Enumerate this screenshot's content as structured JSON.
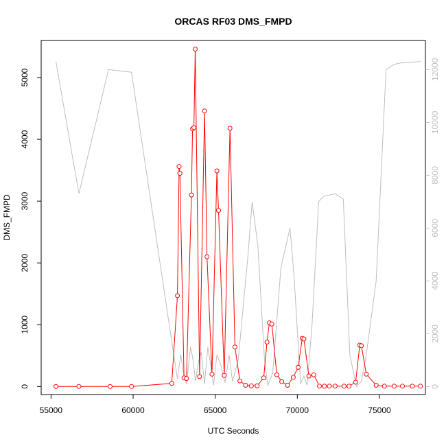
{
  "chart_data": {
    "type": "line",
    "title": "ORCAS RF03 DMS_FMPD",
    "xlabel": "UTC Seconds",
    "ylabel": "DMS_FMPD",
    "y2label": "",
    "xlim": [
      54400,
      77800
    ],
    "ylim": [
      -130,
      5600
    ],
    "y2lim": [
      -300,
      13100
    ],
    "x_ticks": [
      55000,
      60000,
      65000,
      70000,
      75000
    ],
    "y_ticks": [
      0,
      1000,
      2000,
      3000,
      4000,
      5000
    ],
    "y2_ticks": [
      0,
      2000,
      4000,
      6000,
      8000,
      10000,
      12000
    ],
    "x_tick_labels": [
      "55000",
      "60000",
      "65000",
      "70000",
      "75000"
    ],
    "y_tick_labels": [
      "0",
      "1000",
      "2000",
      "3000",
      "4000",
      "5000"
    ],
    "y2_tick_labels": [
      "0",
      "2000",
      "4000",
      "6000",
      "8000",
      "10000",
      "12000"
    ],
    "grid": false,
    "colors": {
      "dms_series": "#ff0000",
      "altitude_series": "#bebebe",
      "axis": "#000000",
      "right_axis": "#bebebe"
    },
    "series": [
      {
        "axis": "left",
        "style": "line+points",
        "x": [
          55300,
          56700,
          58600,
          59900,
          62350,
          62700,
          62800,
          62850,
          63100,
          63250,
          63550,
          63620,
          63700,
          63780,
          64050,
          64350,
          64500,
          64800,
          65100,
          65200,
          65550,
          65900,
          66200,
          66500,
          66850,
          67200,
          67550,
          67950,
          68150,
          68300,
          68450,
          68750,
          69050,
          69400,
          69750,
          70050,
          70300,
          70400,
          70700,
          71000,
          71350,
          71650,
          71950,
          72300,
          72850,
          73150,
          73550,
          73800,
          73900,
          74200,
          74800,
          75300,
          75900,
          76400,
          77000,
          77500
        ],
        "y": [
          0,
          0,
          0,
          0,
          50,
          1470,
          3560,
          3450,
          140,
          130,
          3100,
          4170,
          4190,
          5460,
          160,
          4460,
          2100,
          200,
          3490,
          2850,
          180,
          4180,
          640,
          90,
          20,
          10,
          10,
          140,
          720,
          1030,
          1010,
          190,
          80,
          20,
          150,
          310,
          780,
          770,
          170,
          190,
          5,
          5,
          5,
          5,
          5,
          5,
          70,
          670,
          660,
          200,
          20,
          5,
          5,
          5,
          5,
          5
        ]
      },
      {
        "axis": "right",
        "style": "line",
        "x": [
          55300,
          56700,
          58500,
          59900,
          62400,
          62700,
          62900,
          63100,
          63250,
          63500,
          63650,
          63800,
          64000,
          64150,
          64350,
          64550,
          64700,
          64900,
          65100,
          65300,
          65600,
          65850,
          66050,
          66400,
          67000,
          67250,
          67600,
          68000,
          68200,
          68500,
          69000,
          69550,
          69800,
          70200,
          70400,
          70600,
          70900,
          71300,
          71600,
          72300,
          72800,
          73200,
          73600,
          73900,
          74200,
          74800,
          75400,
          75900,
          76300,
          77500
        ],
        "y": [
          12300,
          7300,
          12000,
          11900,
          1500,
          300,
          1200,
          400,
          100,
          1500,
          1000,
          200,
          1000,
          1300,
          100,
          1500,
          900,
          50,
          1200,
          900,
          150,
          1200,
          200,
          1000,
          5000,
          7000,
          5300,
          1000,
          50,
          500,
          4500,
          6000,
          4200,
          100,
          400,
          50,
          2400,
          7000,
          7200,
          7300,
          7100,
          1200,
          0,
          200,
          1200,
          4000,
          12000,
          12200,
          12250,
          12300
        ]
      }
    ]
  }
}
